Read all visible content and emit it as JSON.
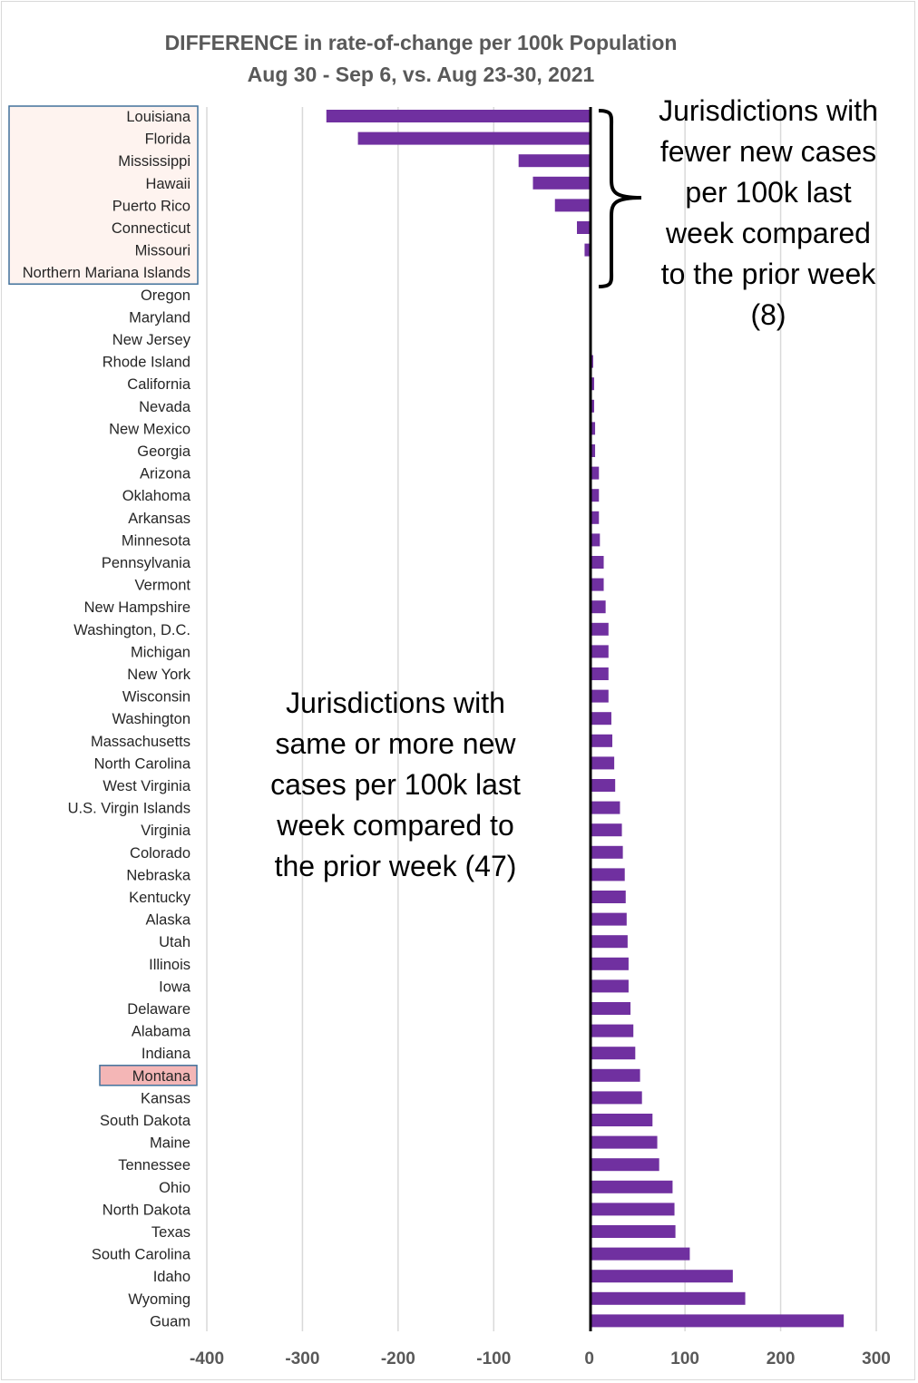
{
  "chart_data": {
    "type": "bar",
    "orientation": "horizontal",
    "title": "DIFFERENCE in rate-of-change per 100k Population",
    "subtitle": "Aug 30 - Sep 6, vs. Aug  23-30, 2021",
    "xlabel": "",
    "ylabel": "",
    "xlim": [
      -400,
      300
    ],
    "xticks": [
      "-400",
      "-300",
      "-200",
      "-100",
      "0",
      "100",
      "200",
      "300"
    ],
    "grid": "vertical",
    "bar_color": "#7030a0",
    "categories": [
      "Louisiana",
      "Florida",
      "Mississippi",
      "Hawaii",
      "Puerto Rico",
      "Connecticut",
      "Missouri",
      "Northern Mariana Islands",
      "Oregon",
      "Maryland",
      "New Jersey",
      "Rhode Island",
      "California",
      "Nevada",
      "New Mexico",
      "Georgia",
      "Arizona",
      "Oklahoma",
      "Arkansas",
      "Minnesota",
      "Pennsylvania",
      "Vermont",
      "New Hampshire",
      "Washington, D.C.",
      "Michigan",
      "New York",
      "Wisconsin",
      "Washington",
      "Massachusetts",
      "North Carolina",
      "West Virginia",
      "U.S. Virgin Islands",
      "Virginia",
      "Colorado",
      "Nebraska",
      "Kentucky",
      "Alaska",
      "Utah",
      "Illinois",
      "Iowa",
      "Delaware",
      "Alabama",
      "Indiana",
      "Montana",
      "Kansas",
      "South Dakota",
      "Maine",
      "Tennessee",
      "Ohio",
      "North Dakota",
      "Texas",
      "South Carolina",
      "Idaho",
      "Wyoming",
      "Guam"
    ],
    "values": [
      -275,
      -242,
      -74,
      -59,
      -36,
      -13,
      -5,
      0,
      0,
      0,
      0,
      4,
      5,
      5,
      6,
      6,
      10,
      10,
      10,
      11,
      15,
      15,
      17,
      20,
      20,
      20,
      20,
      23,
      24,
      26,
      27,
      32,
      34,
      35,
      37,
      38,
      39,
      40,
      41,
      41,
      43,
      46,
      48,
      53,
      55,
      66,
      71,
      73,
      87,
      89,
      90,
      105,
      150,
      163,
      266
    ],
    "highlight_box": [
      "Louisiana",
      "Florida",
      "Mississippi",
      "Hawaii",
      "Puerto Rico",
      "Connecticut",
      "Missouri",
      "Northern Mariana Islands"
    ],
    "highlight_label": "Montana",
    "annotations": {
      "top_right": [
        "Jurisdictions with",
        "fewer new cases",
        "per 100k last",
        "week compared",
        "to the prior week",
        "(8)"
      ],
      "middle": [
        "Jurisdictions with",
        "same or more new",
        "cases per 100k last",
        "week compared to",
        "the prior week (47)"
      ]
    }
  }
}
